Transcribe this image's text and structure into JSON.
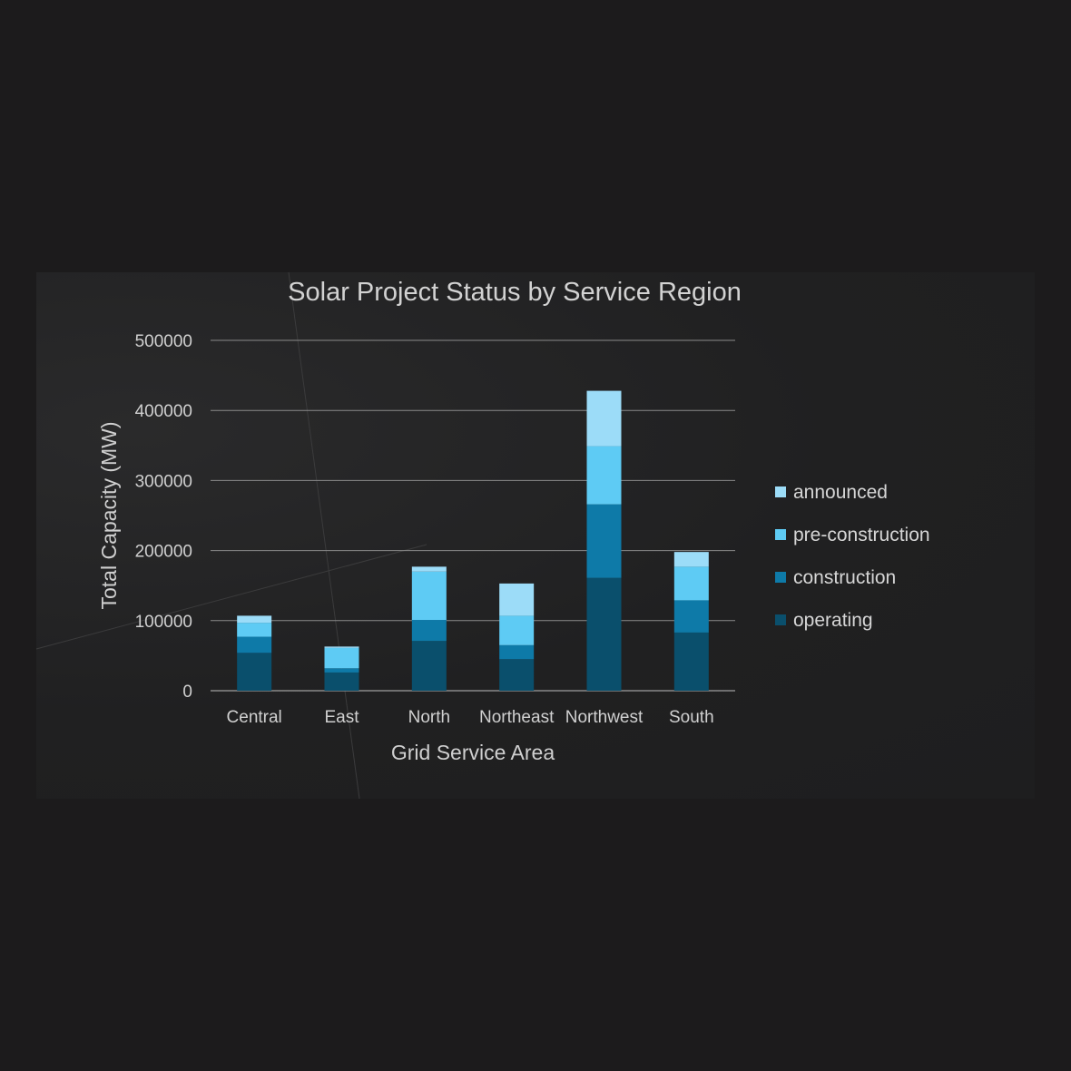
{
  "chart_data": {
    "type": "bar",
    "stacked": true,
    "title": "Solar Project Status by Service Region",
    "xlabel": "Grid Service Area",
    "ylabel": "Total Capacity (MW)",
    "ylim": [
      0,
      500000
    ],
    "yticks": [
      "0",
      "100000",
      "200000",
      "300000",
      "400000",
      "500000"
    ],
    "grid": true,
    "legend_position": "right",
    "categories": [
      "Central",
      "East",
      "North",
      "Northeast",
      "Northwest",
      "South"
    ],
    "series": [
      {
        "name": "operating",
        "color": "#0a4f6c",
        "values": [
          54000,
          26000,
          71000,
          45000,
          161000,
          83000
        ]
      },
      {
        "name": "construction",
        "color": "#0e7aa8",
        "values": [
          23000,
          6000,
          30000,
          20000,
          105000,
          46000
        ]
      },
      {
        "name": "pre-construction",
        "color": "#5ecbf4",
        "values": [
          20000,
          29000,
          69000,
          42000,
          83000,
          48000
        ]
      },
      {
        "name": "announced",
        "color": "#9cdcf8",
        "values": [
          10000,
          2000,
          7000,
          46000,
          79000,
          21000
        ]
      }
    ]
  }
}
